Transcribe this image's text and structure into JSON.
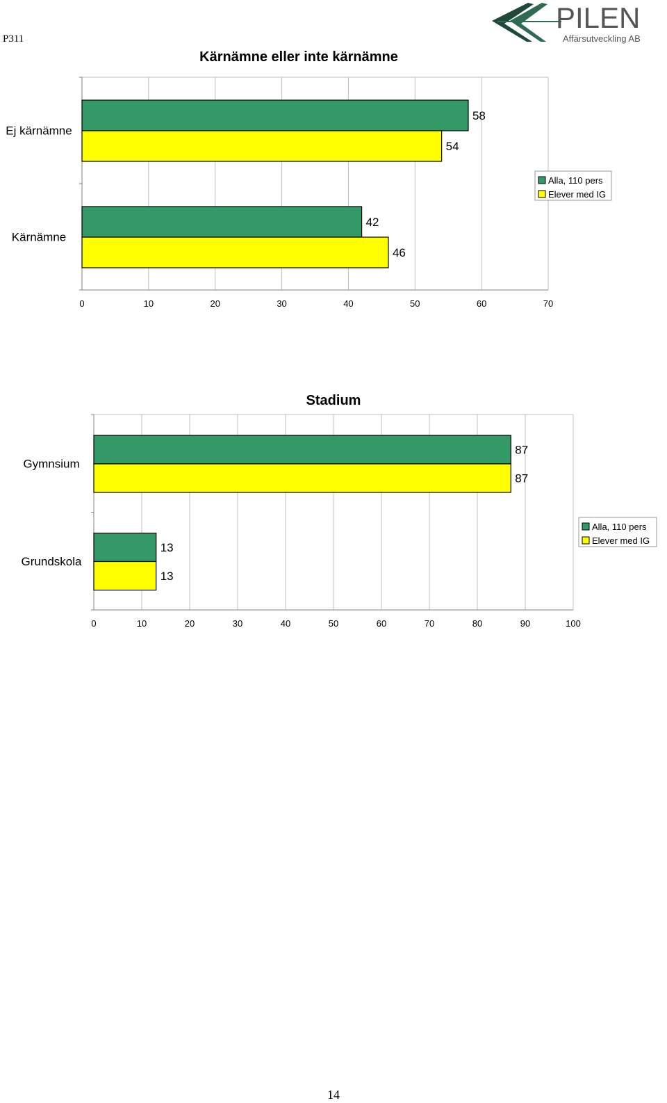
{
  "page": {
    "code": "P311",
    "number": "14"
  },
  "logo": {
    "name": "PILEN",
    "subtitle": "Affärsutveckling AB"
  },
  "colors": {
    "series_1": "#339966",
    "series_2": "#ffff00",
    "grid": "#c0c0c0"
  },
  "chart_data": [
    {
      "type": "bar",
      "orientation": "horizontal",
      "title": "Kärnämne eller inte kärnämne",
      "categories": [
        "Ej kärnämne",
        "Kärnämne"
      ],
      "series": [
        {
          "name": "Alla, 110 pers",
          "values": [
            58,
            42
          ]
        },
        {
          "name": "Elever med IG",
          "values": [
            54,
            46
          ]
        }
      ],
      "xlim": [
        0,
        70
      ],
      "xticks": [
        0,
        10,
        20,
        30,
        40,
        50,
        60,
        70
      ],
      "grid": true,
      "legend": "right"
    },
    {
      "type": "bar",
      "orientation": "horizontal",
      "title": "Stadium",
      "categories": [
        "Gymnsium",
        "Grundskola"
      ],
      "series": [
        {
          "name": "Alla, 110 pers",
          "values": [
            87,
            13
          ]
        },
        {
          "name": "Elever med IG",
          "values": [
            87,
            13
          ]
        }
      ],
      "xlim": [
        0,
        100
      ],
      "xticks": [
        0,
        10,
        20,
        30,
        40,
        50,
        60,
        70,
        80,
        90,
        100
      ],
      "grid": true,
      "legend": "right"
    }
  ]
}
